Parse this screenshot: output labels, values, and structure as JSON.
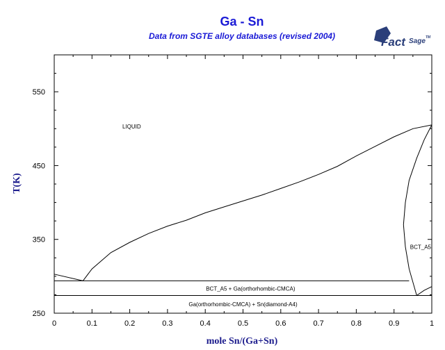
{
  "chart_data": {
    "type": "line",
    "title": "Ga - Sn",
    "subtitle": "Data from SGTE alloy databases (revised 2004)",
    "xlabel": "mole Sn/(Ga+Sn)",
    "ylabel": "T(K)",
    "xlim": [
      0,
      1
    ],
    "ylim": [
      250,
      600
    ],
    "xticks": [
      0,
      0.1,
      0.2,
      0.3,
      0.4,
      0.5,
      0.6,
      0.7,
      0.8,
      0.9,
      1
    ],
    "xtick_labels": [
      "0",
      "0.1",
      "0.2",
      "0.3",
      "0.4",
      "0.5",
      "0.6",
      "0.7",
      "0.8",
      "0.9",
      "1"
    ],
    "yticks": [
      250,
      350,
      450,
      550
    ],
    "ytick_labels": [
      "250",
      "350",
      "450",
      "550"
    ],
    "grid": false,
    "series": [
      {
        "values": [
          [
            0,
            302.9
          ],
          [
            0.076,
            293.8
          ]
        ]
      },
      {
        "values": [
          [
            0.076,
            293.8
          ],
          [
            0.1,
            310
          ],
          [
            0.15,
            332
          ],
          [
            0.2,
            346
          ],
          [
            0.25,
            358
          ],
          [
            0.3,
            368
          ],
          [
            0.35,
            376
          ],
          [
            0.4,
            386
          ],
          [
            0.45,
            394
          ],
          [
            0.5,
            402
          ],
          [
            0.55,
            410
          ],
          [
            0.6,
            419
          ],
          [
            0.65,
            428
          ],
          [
            0.7,
            438
          ],
          [
            0.75,
            449
          ],
          [
            0.8,
            463
          ],
          [
            0.85,
            476
          ],
          [
            0.9,
            489
          ],
          [
            0.95,
            500
          ],
          [
            1.0,
            505.1
          ]
        ]
      },
      {
        "values": [
          [
            1.0,
            505.1
          ],
          [
            0.98,
            485
          ],
          [
            0.96,
            460
          ],
          [
            0.94,
            430
          ],
          [
            0.93,
            400
          ],
          [
            0.925,
            370
          ],
          [
            0.93,
            340
          ],
          [
            0.94,
            310
          ],
          [
            0.96,
            274
          ]
        ]
      },
      {
        "values": [
          [
            0.96,
            274
          ],
          [
            0.98,
            281
          ],
          [
            1.0,
            286
          ]
        ]
      },
      {
        "values": [
          [
            0,
            293.8
          ],
          [
            0.94,
            293.8
          ]
        ]
      },
      {
        "values": [
          [
            0,
            274
          ],
          [
            1.0,
            274
          ]
        ]
      }
    ],
    "annotations": [
      {
        "text": "LIQUID",
        "x": 0.205,
        "y": 503
      },
      {
        "text": "BCT_A5",
        "x": 0.98,
        "y": 340
      },
      {
        "text": "BCT_A5 + Ga(orthorhombic-CMCA)",
        "x": 0.52,
        "y": 283.5
      },
      {
        "text": "Ga(orthorhombic-CMCA) + Sn(diamond-A4)",
        "x": 0.5,
        "y": 262
      }
    ]
  },
  "logo": {
    "text_main": "Fact",
    "text_secondary": "Sage",
    "mark": "TM"
  }
}
